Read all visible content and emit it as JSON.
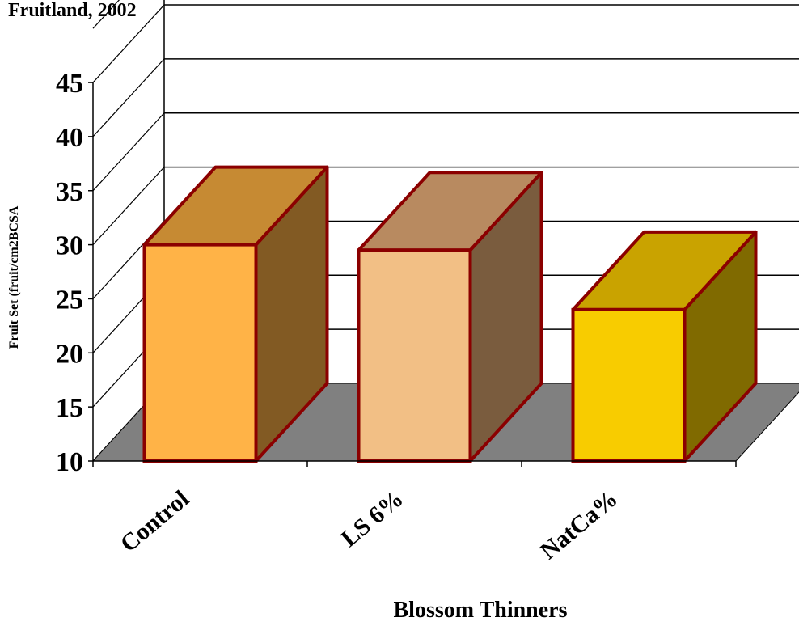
{
  "chart_data": {
    "type": "bar",
    "title": "Fruitland, 2002",
    "xlabel": "Blossom Thinners",
    "ylabel": "Fruit Set (fruit/cm2BCSA",
    "categories": [
      "Control",
      "LS 6%",
      "NatCa%"
    ],
    "values": [
      30.0,
      29.5,
      24.0
    ],
    "ylim": [
      10,
      45
    ],
    "yticks": [
      "10",
      "15",
      "20",
      "25",
      "30",
      "35",
      "40",
      "45"
    ],
    "grid": true,
    "three_d": true,
    "colors": {
      "front": [
        "#FFB347",
        "#F2BF85",
        "#F8CC00"
      ],
      "top": [
        "#C68A33",
        "#B88A60",
        "#C9A300"
      ],
      "side": [
        "#825A23",
        "#7A5C3E",
        "#806A00"
      ],
      "outline": "#8B0000",
      "floor": "#808080"
    }
  }
}
